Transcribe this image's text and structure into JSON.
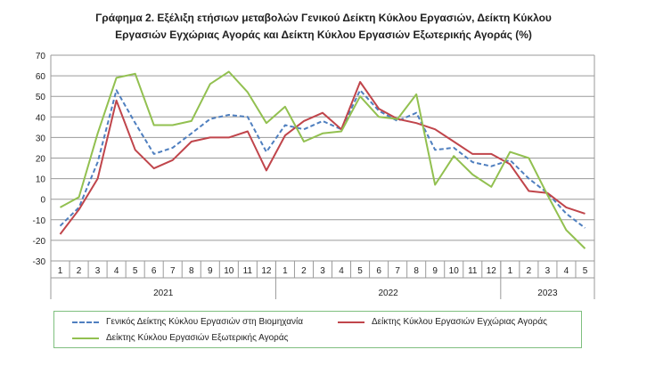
{
  "title_line1": "Γράφημα 2. Εξέλιξη ετήσιων μεταβολών Γενικού Δείκτη Κύκλου Εργασιών,  Δείκτη Κύκλου",
  "title_line2": "Εργασιών Εγχώριας Αγοράς και Δείκτη Κύκλου Εργασιών Εξωτερικής Αγοράς  (%)",
  "chart_data": {
    "type": "line",
    "title": "Γράφημα 2. Εξέλιξη ετήσιων μεταβολών Γενικού Δείκτη Κύκλου Εργασιών,  Δείκτη Κύκλου Εργασιών Εγχώριας Αγοράς και Δείκτη Κύκλου Εργασιών Εξωτερικής Αγοράς  (%)",
    "categories": [
      "1",
      "2",
      "3",
      "4",
      "5",
      "6",
      "7",
      "8",
      "9",
      "10",
      "11",
      "12",
      "1",
      "2",
      "3",
      "4",
      "5",
      "6",
      "7",
      "8",
      "9",
      "10",
      "11",
      "12",
      "1",
      "2",
      "3",
      "4",
      "5"
    ],
    "year_groups": [
      {
        "label": "2021",
        "count": 12
      },
      {
        "label": "2022",
        "count": 12
      },
      {
        "label": "2023",
        "count": 5
      }
    ],
    "ylim": [
      -30,
      70
    ],
    "yticks": [
      -30,
      -20,
      -10,
      0,
      10,
      20,
      30,
      40,
      50,
      60,
      70
    ],
    "grid": true,
    "legend_position": "bottom",
    "series": [
      {
        "name": "Γενικός Δείκτης Κύκλου Εργασιών στη Βιομηχανία",
        "color": "#4f7fbf",
        "style": "dashed",
        "values": [
          -13,
          -4,
          18,
          53,
          37,
          22,
          25,
          32,
          39,
          41,
          40,
          23,
          36,
          34,
          38,
          34,
          53,
          43,
          38,
          42,
          24,
          25,
          18,
          16,
          19,
          10,
          3,
          -7,
          -14
        ]
      },
      {
        "name": "Δείκτης Κύκλου Εργασιών Εγχώριας Αγοράς",
        "color": "#c0454b",
        "style": "solid",
        "values": [
          -17,
          -5,
          10,
          48,
          24,
          15,
          19,
          28,
          30,
          30,
          33,
          14,
          31,
          38,
          42,
          34,
          57,
          44,
          39,
          37,
          34,
          28,
          22,
          22,
          17,
          4,
          3,
          -4,
          -7
        ]
      },
      {
        "name": "Δείκτης Κύκλου Εργασιών Εξωτερικής Αγοράς",
        "color": "#92c050",
        "style": "solid",
        "values": [
          -4,
          1,
          32,
          59,
          61,
          36,
          36,
          38,
          56,
          62,
          52,
          37,
          45,
          28,
          32,
          33,
          50,
          40,
          39,
          51,
          7,
          21,
          12,
          6,
          23,
          20,
          2,
          -15,
          -24
        ]
      }
    ]
  }
}
